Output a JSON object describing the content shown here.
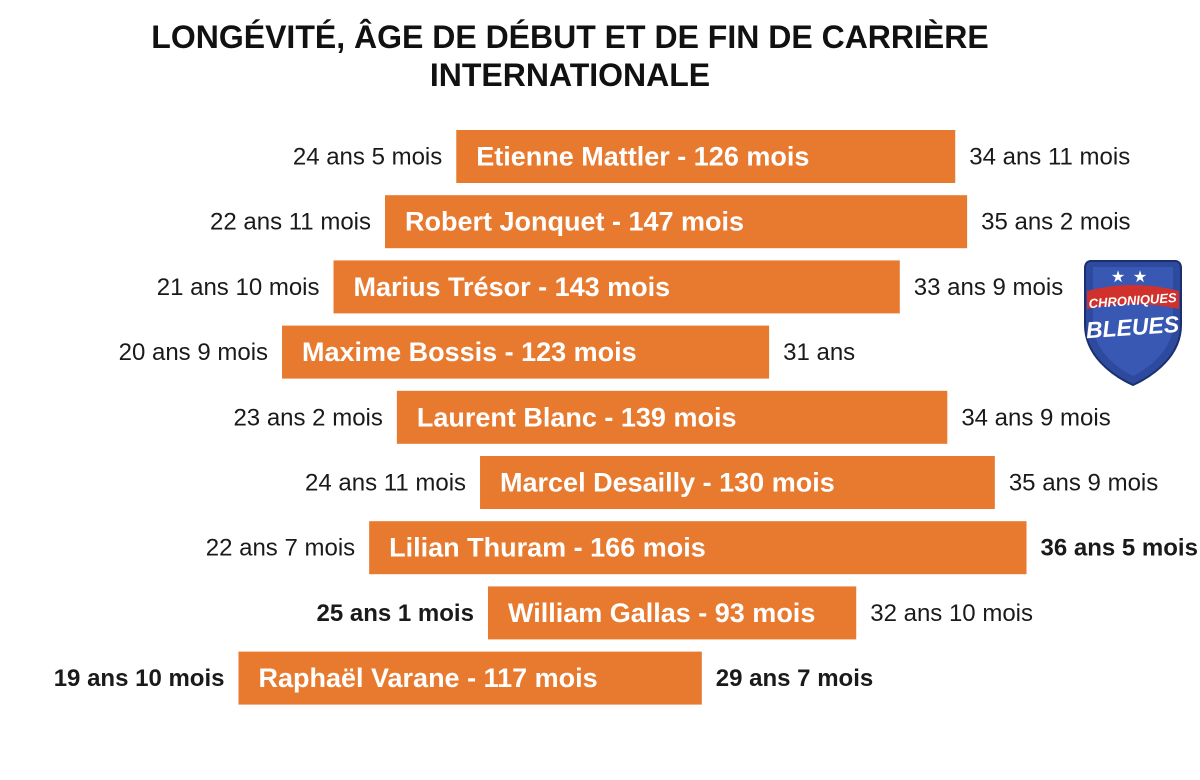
{
  "title": {
    "line1": "LONGÉVITÉ, ÂGE DE DÉBUT ET DE FIN DE CARRIÈRE",
    "line2": "INTERNATIONALE"
  },
  "colors": {
    "bar": "#E87A2F",
    "text": "#1a1a1a",
    "earliest_latest_highlight": "#D0312D",
    "youngest_highlight": "#3FA535"
  },
  "logo": {
    "line1": "CHRONIQUES",
    "line2": "BLEUES",
    "icon": "shield-with-two-stars-icon"
  },
  "chart_data": {
    "type": "bar",
    "subtype": "floating-range",
    "x_unit": "age in months",
    "rows": [
      {
        "label": "Etienne Mattler - 126 mois",
        "player": "Etienne Mattler",
        "duration_months": 126,
        "start_label": "24 ans 5 mois",
        "end_label": "34 ans 11 mois",
        "start": 293,
        "end": 419,
        "start_color": "text",
        "end_color": "text"
      },
      {
        "label": "Robert Jonquet - 147 mois",
        "player": "Robert Jonquet",
        "duration_months": 147,
        "start_label": "22 ans 11 mois",
        "end_label": "35 ans 2 mois",
        "start": 275,
        "end": 422,
        "start_color": "text",
        "end_color": "text"
      },
      {
        "label": "Marius Trésor - 143 mois",
        "player": "Marius Trésor",
        "duration_months": 143,
        "start_label": "21 ans 10 mois",
        "end_label": "33 ans 9 mois",
        "start": 262,
        "end": 405,
        "start_color": "text",
        "end_color": "text"
      },
      {
        "label": "Maxime Bossis - 123 mois",
        "player": "Maxime Bossis",
        "duration_months": 123,
        "start_label": "20 ans 9 mois",
        "end_label": "31 ans",
        "start": 249,
        "end": 372,
        "start_color": "text",
        "end_color": "text"
      },
      {
        "label": "Laurent Blanc - 139 mois",
        "player": "Laurent Blanc",
        "duration_months": 139,
        "start_label": "23 ans 2 mois",
        "end_label": "34 ans 9 mois",
        "start": 278,
        "end": 417,
        "start_color": "text",
        "end_color": "text"
      },
      {
        "label": "Marcel Desailly - 130 mois",
        "player": "Marcel Desailly",
        "duration_months": 130,
        "start_label": "24 ans 11 mois",
        "end_label": "35 ans 9 mois",
        "start": 299,
        "end": 429,
        "start_color": "text",
        "end_color": "text"
      },
      {
        "label": "Lilian Thuram - 166 mois",
        "player": "Lilian Thuram",
        "duration_months": 166,
        "start_label": "22 ans 7 mois",
        "end_label": "36 ans 5 mois",
        "start": 271,
        "end": 437,
        "start_color": "text",
        "end_color": "earliest_latest_highlight"
      },
      {
        "label": "William Gallas - 93 mois",
        "player": "William Gallas",
        "duration_months": 93,
        "start_label": "25 ans 1 mois",
        "end_label": "32 ans 10 mois",
        "start": 301,
        "end": 394,
        "start_color": "earliest_latest_highlight",
        "end_color": "text"
      },
      {
        "label": "Raphaël Varane - 117 mois",
        "player": "Raphaël Varane",
        "duration_months": 117,
        "start_label": "19 ans 10 mois",
        "end_label": "29 ans 7 mois",
        "start": 238,
        "end": 355,
        "start_color": "youngest_highlight",
        "end_color": "youngest_highlight"
      }
    ]
  }
}
